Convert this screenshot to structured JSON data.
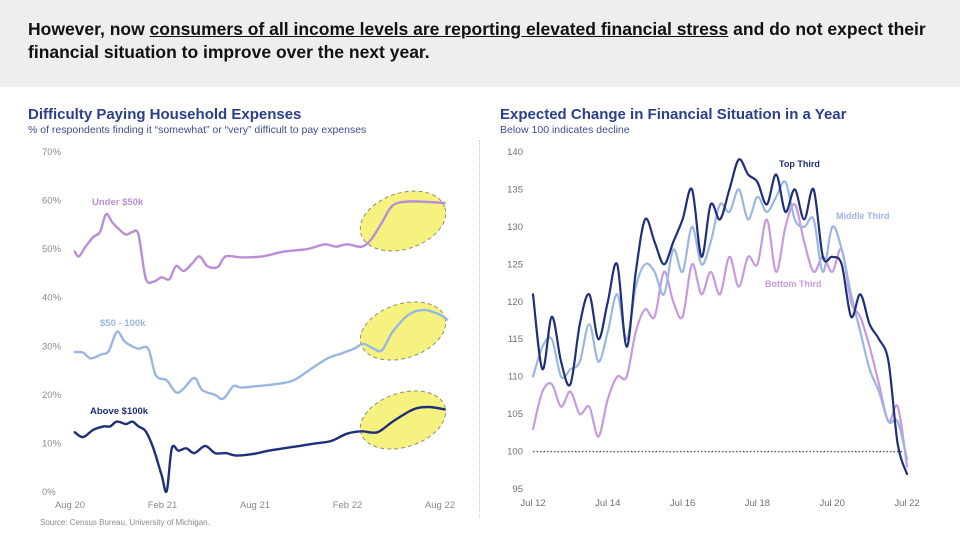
{
  "header": {
    "text_before": "However, now ",
    "text_underlined": "consumers of all income levels are reporting elevated financial stress",
    "text_after": " and do not expect their financial situation to improve over the next year."
  },
  "source": "Source: Census Bureau, University of Michigan.",
  "chart_data": [
    {
      "type": "line",
      "title": "Difficulty Paying Household Expenses",
      "subtitle": "% of respondents finding it “somewhat” or “very” difficult to pay expenses",
      "xlabel": "",
      "ylabel": "",
      "x_ticks": [
        "Aug 20",
        "Feb 21",
        "Aug 21",
        "Feb 22",
        "Aug 22"
      ],
      "y_ticks": [
        "0%",
        "10%",
        "20%",
        "30%",
        "40%",
        "50%",
        "60%",
        "70%"
      ],
      "ylim": [
        0,
        70
      ],
      "xlim": [
        "2020-08",
        "2022-08"
      ],
      "grid": false,
      "highlight": "yellow dashed ellipses over the latest values (Feb 22 – Aug 22) of each series",
      "series": [
        {
          "name": "Under $50k",
          "color": "#b98ed6",
          "points": [
            [
              "2020-08-20",
              49.5
            ],
            [
              "2020-08-28",
              48.5
            ],
            [
              "2020-09-10",
              50.5
            ],
            [
              "2020-09-25",
              52.5
            ],
            [
              "2020-10-08",
              53.5
            ],
            [
              "2020-10-20",
              57.2
            ],
            [
              "2020-11-01",
              55.5
            ],
            [
              "2020-11-15",
              54
            ],
            [
              "2020-11-28",
              53
            ],
            [
              "2020-12-10",
              53.5
            ],
            [
              "2020-12-22",
              53
            ],
            [
              "2021-01-05",
              44
            ],
            [
              "2021-01-20",
              43.3
            ],
            [
              "2021-02-05",
              44.2
            ],
            [
              "2021-02-20",
              43.8
            ],
            [
              "2021-03-05",
              46.5
            ],
            [
              "2021-03-20",
              45.5
            ],
            [
              "2021-04-05",
              47
            ],
            [
              "2021-04-20",
              48.5
            ],
            [
              "2021-05-05",
              46.5
            ],
            [
              "2021-05-25",
              46.3
            ],
            [
              "2021-06-10",
              48.5
            ],
            [
              "2021-07-10",
              48.3
            ],
            [
              "2021-08-20",
              48.5
            ],
            [
              "2021-10-01",
              49.5
            ],
            [
              "2021-11-15",
              50
            ],
            [
              "2021-12-20",
              51
            ],
            [
              "2022-01-10",
              50.5
            ],
            [
              "2022-02-01",
              51
            ],
            [
              "2022-03-01",
              50.5
            ],
            [
              "2022-03-20",
              52
            ],
            [
              "2022-04-10",
              55.5
            ],
            [
              "2022-05-01",
              59
            ],
            [
              "2022-06-01",
              59.8
            ],
            [
              "2022-07-10",
              59.7
            ],
            [
              "2022-08-10",
              59.5
            ]
          ]
        },
        {
          "name": "$50 - 100k",
          "color": "#9ab6e2",
          "points": [
            [
              "2020-08-20",
              28.8
            ],
            [
              "2020-09-05",
              28.7
            ],
            [
              "2020-09-20",
              27.5
            ],
            [
              "2020-10-10",
              28.3
            ],
            [
              "2020-10-25",
              29
            ],
            [
              "2020-11-10",
              33
            ],
            [
              "2020-11-25",
              31
            ],
            [
              "2020-12-10",
              30
            ],
            [
              "2020-12-22",
              29.5
            ],
            [
              "2021-01-10",
              29.5
            ],
            [
              "2021-01-25",
              24
            ],
            [
              "2021-02-15",
              23
            ],
            [
              "2021-03-05",
              20.5
            ],
            [
              "2021-03-20",
              21.3
            ],
            [
              "2021-04-10",
              23.5
            ],
            [
              "2021-04-25",
              21
            ],
            [
              "2021-05-20",
              20
            ],
            [
              "2021-06-05",
              19.2
            ],
            [
              "2021-06-25",
              21.8
            ],
            [
              "2021-07-10",
              21.5
            ],
            [
              "2021-08-10",
              21.8
            ],
            [
              "2021-09-15",
              22.2
            ],
            [
              "2021-10-20",
              23
            ],
            [
              "2021-11-25",
              25.5
            ],
            [
              "2021-12-25",
              27.5
            ],
            [
              "2022-01-20",
              28.5
            ],
            [
              "2022-02-15",
              29.5
            ],
            [
              "2022-03-05",
              30.5
            ],
            [
              "2022-03-25",
              29.5
            ],
            [
              "2022-04-10",
              29.2
            ],
            [
              "2022-05-01",
              33
            ],
            [
              "2022-06-01",
              36.5
            ],
            [
              "2022-07-01",
              37.5
            ],
            [
              "2022-08-01",
              36.5
            ],
            [
              "2022-08-15",
              35.5
            ]
          ]
        },
        {
          "name": "Above $100k",
          "color": "#1f2f78",
          "points": [
            [
              "2020-08-20",
              12.3
            ],
            [
              "2020-09-05",
              11.3
            ],
            [
              "2020-09-25",
              12.8
            ],
            [
              "2020-10-15",
              13.5
            ],
            [
              "2020-10-28",
              13.5
            ],
            [
              "2020-11-10",
              14.5
            ],
            [
              "2020-11-28",
              14
            ],
            [
              "2020-12-10",
              14.5
            ],
            [
              "2020-12-22",
              13.5
            ],
            [
              "2021-01-05",
              12.5
            ],
            [
              "2021-01-20",
              9
            ],
            [
              "2021-02-05",
              3.5
            ],
            [
              "2021-02-15",
              0.2
            ],
            [
              "2021-02-25",
              9
            ],
            [
              "2021-03-10",
              8.5
            ],
            [
              "2021-03-25",
              9
            ],
            [
              "2021-04-10",
              8
            ],
            [
              "2021-05-01",
              9.5
            ],
            [
              "2021-05-20",
              8
            ],
            [
              "2021-06-10",
              8
            ],
            [
              "2021-07-01",
              7.5
            ],
            [
              "2021-08-01",
              7.8
            ],
            [
              "2021-09-01",
              8.5
            ],
            [
              "2021-10-01",
              9
            ],
            [
              "2021-11-01",
              9.5
            ],
            [
              "2021-12-01",
              10
            ],
            [
              "2022-01-01",
              10.5
            ],
            [
              "2022-02-01",
              12
            ],
            [
              "2022-03-01",
              12.5
            ],
            [
              "2022-04-01",
              12.3
            ],
            [
              "2022-05-01",
              14.5
            ],
            [
              "2022-06-10",
              17
            ],
            [
              "2022-07-10",
              17.5
            ],
            [
              "2022-08-10",
              17
            ]
          ]
        }
      ]
    },
    {
      "type": "line",
      "title": "Expected Change in Financial Situation in a Year",
      "subtitle": "Below 100 indicates decline",
      "xlabel": "",
      "ylabel": "",
      "x_ticks": [
        "Jul 12",
        "Jul 14",
        "Jul 16",
        "Jul 18",
        "Jul 20",
        "Jul 22"
      ],
      "y_ticks": [
        "95",
        "100",
        "105",
        "110",
        "115",
        "120",
        "125",
        "130",
        "135",
        "140"
      ],
      "ylim": [
        95,
        140
      ],
      "xlim": [
        "2012-07",
        "2022-07"
      ],
      "reference_line": 100,
      "grid": false,
      "series": [
        {
          "name": "Top Third",
          "color": "#1f2f78",
          "points": [
            [
              "2012-07",
              121
            ],
            [
              "2012-10",
              111
            ],
            [
              "2013-01",
              118
            ],
            [
              "2013-04",
              112
            ],
            [
              "2013-07",
              109
            ],
            [
              "2013-10",
              117
            ],
            [
              "2014-01",
              121
            ],
            [
              "2014-04",
              115
            ],
            [
              "2014-07",
              120
            ],
            [
              "2014-10",
              125
            ],
            [
              "2015-01",
              114
            ],
            [
              "2015-04",
              124
            ],
            [
              "2015-07",
              131
            ],
            [
              "2015-10",
              128
            ],
            [
              "2016-01",
              125
            ],
            [
              "2016-04",
              128
            ],
            [
              "2016-07",
              131
            ],
            [
              "2016-10",
              135
            ],
            [
              "2017-01",
              126
            ],
            [
              "2017-04",
              133
            ],
            [
              "2017-07",
              131
            ],
            [
              "2017-10",
              135
            ],
            [
              "2018-01",
              139
            ],
            [
              "2018-04",
              137
            ],
            [
              "2018-07",
              136
            ],
            [
              "2018-10",
              133
            ],
            [
              "2019-01",
              137
            ],
            [
              "2019-04",
              132
            ],
            [
              "2019-07",
              135
            ],
            [
              "2019-10",
              131
            ],
            [
              "2020-01",
              135
            ],
            [
              "2020-04",
              126
            ],
            [
              "2020-07",
              126
            ],
            [
              "2020-10",
              125
            ],
            [
              "2021-01",
              118
            ],
            [
              "2021-04",
              121
            ],
            [
              "2021-07",
              117
            ],
            [
              "2021-10",
              115
            ],
            [
              "2022-01",
              112
            ],
            [
              "2022-04",
              101
            ],
            [
              "2022-07",
              97
            ]
          ]
        },
        {
          "name": "Middle Third",
          "color": "#9ab6e2",
          "points": [
            [
              "2012-07",
              110
            ],
            [
              "2012-10",
              114
            ],
            [
              "2013-01",
              115
            ],
            [
              "2013-04",
              110
            ],
            [
              "2013-07",
              111
            ],
            [
              "2013-10",
              112
            ],
            [
              "2014-01",
              117
            ],
            [
              "2014-04",
              112
            ],
            [
              "2014-07",
              116
            ],
            [
              "2014-10",
              121
            ],
            [
              "2015-01",
              115
            ],
            [
              "2015-04",
              122
            ],
            [
              "2015-07",
              125
            ],
            [
              "2015-10",
              124
            ],
            [
              "2016-01",
              121
            ],
            [
              "2016-04",
              127
            ],
            [
              "2016-07",
              124
            ],
            [
              "2016-10",
              130
            ],
            [
              "2017-01",
              125
            ],
            [
              "2017-04",
              128
            ],
            [
              "2017-07",
              133
            ],
            [
              "2017-10",
              132
            ],
            [
              "2018-01",
              135
            ],
            [
              "2018-04",
              131
            ],
            [
              "2018-07",
              134
            ],
            [
              "2018-10",
              132
            ],
            [
              "2019-01",
              134
            ],
            [
              "2019-04",
              136
            ],
            [
              "2019-07",
              131
            ],
            [
              "2019-10",
              130
            ],
            [
              "2020-01",
              131
            ],
            [
              "2020-04",
              124
            ],
            [
              "2020-07",
              130
            ],
            [
              "2020-10",
              127
            ],
            [
              "2021-01",
              121
            ],
            [
              "2021-04",
              116
            ],
            [
              "2021-07",
              111
            ],
            [
              "2021-10",
              108
            ],
            [
              "2022-01",
              104
            ],
            [
              "2022-04",
              104
            ],
            [
              "2022-07",
              99
            ]
          ]
        },
        {
          "name": "Bottom Third",
          "color": "#c79ae0",
          "points": [
            [
              "2012-07",
              103
            ],
            [
              "2012-10",
              108
            ],
            [
              "2013-01",
              109
            ],
            [
              "2013-04",
              106
            ],
            [
              "2013-07",
              108
            ],
            [
              "2013-10",
              105
            ],
            [
              "2014-01",
              106
            ],
            [
              "2014-04",
              102
            ],
            [
              "2014-07",
              107
            ],
            [
              "2014-10",
              110
            ],
            [
              "2015-01",
              110
            ],
            [
              "2015-04",
              116
            ],
            [
              "2015-07",
              119
            ],
            [
              "2015-10",
              118
            ],
            [
              "2016-01",
              124
            ],
            [
              "2016-04",
              120
            ],
            [
              "2016-07",
              118
            ],
            [
              "2016-10",
              125
            ],
            [
              "2017-01",
              121
            ],
            [
              "2017-04",
              124
            ],
            [
              "2017-07",
              121
            ],
            [
              "2017-10",
              126
            ],
            [
              "2018-01",
              122
            ],
            [
              "2018-04",
              126
            ],
            [
              "2018-07",
              125
            ],
            [
              "2018-10",
              131
            ],
            [
              "2019-01",
              124
            ],
            [
              "2019-04",
              130
            ],
            [
              "2019-07",
              133
            ],
            [
              "2019-10",
              128
            ],
            [
              "2020-01",
              124
            ],
            [
              "2020-04",
              126
            ],
            [
              "2020-07",
              124
            ],
            [
              "2020-10",
              127
            ],
            [
              "2021-01",
              120
            ],
            [
              "2021-04",
              118
            ],
            [
              "2021-07",
              114
            ],
            [
              "2021-10",
              109
            ],
            [
              "2022-01",
              104
            ],
            [
              "2022-04",
              106
            ],
            [
              "2022-07",
              98
            ]
          ]
        }
      ]
    }
  ]
}
